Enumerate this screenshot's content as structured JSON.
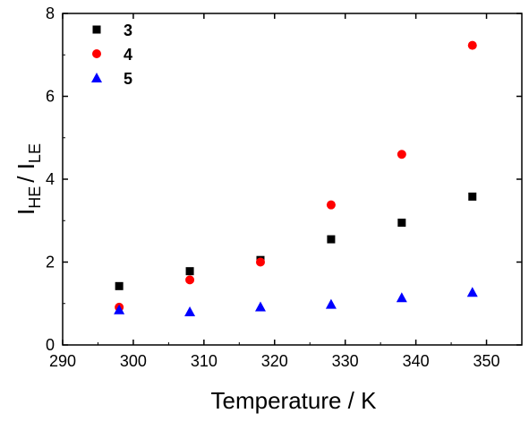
{
  "chart_data": {
    "type": "scatter",
    "xlabel": "Temperature / K",
    "ylabel": {
      "parts": [
        {
          "text": "I",
          "sub": false
        },
        {
          "text": "HE",
          "sub": true
        },
        {
          "text": "/ I",
          "sub": false
        },
        {
          "text": "LE",
          "sub": true
        }
      ]
    },
    "xlim": [
      290,
      355
    ],
    "ylim": [
      0,
      8
    ],
    "xticks": [
      290,
      300,
      310,
      320,
      330,
      340,
      350
    ],
    "yticks": [
      0,
      2,
      4,
      6,
      8
    ],
    "grid": false,
    "legend_position": "top-left",
    "series": [
      {
        "name": "3",
        "marker": "square",
        "color": "#000000",
        "x": [
          298,
          308,
          318,
          328,
          338,
          348
        ],
        "y": [
          1.42,
          1.78,
          2.05,
          2.55,
          2.95,
          3.58
        ]
      },
      {
        "name": "4",
        "marker": "circle",
        "color": "#ff0000",
        "x": [
          298,
          308,
          318,
          328,
          338,
          348
        ],
        "y": [
          0.91,
          1.57,
          2.0,
          3.38,
          4.6,
          7.23
        ]
      },
      {
        "name": "5",
        "marker": "triangle",
        "color": "#0000ff",
        "x": [
          298,
          308,
          318,
          328,
          338,
          348
        ],
        "y": [
          0.85,
          0.8,
          0.92,
          0.98,
          1.14,
          1.27
        ]
      }
    ]
  }
}
